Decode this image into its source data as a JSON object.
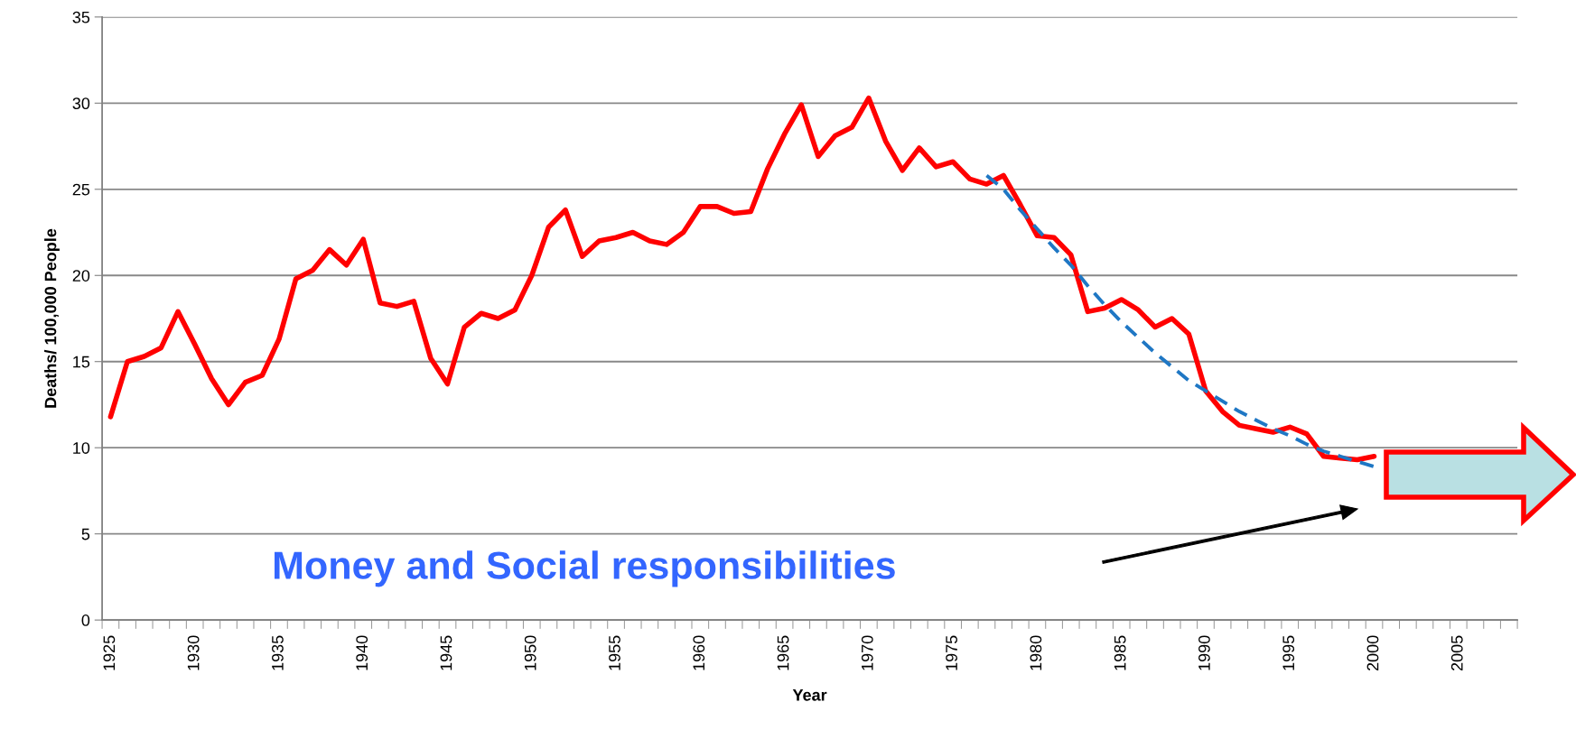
{
  "chart_data": {
    "type": "line",
    "xlabel": "Year",
    "ylabel": "Deaths/ 100,000 People",
    "categories": [
      "1925",
      null,
      null,
      null,
      null,
      "1930",
      null,
      null,
      null,
      null,
      "1935",
      null,
      null,
      null,
      null,
      "1940",
      null,
      null,
      null,
      null,
      "1945",
      null,
      null,
      null,
      null,
      "1950",
      null,
      null,
      null,
      null,
      "1955",
      null,
      null,
      null,
      null,
      "1960",
      null,
      null,
      null,
      null,
      "1965",
      null,
      null,
      null,
      null,
      "1970",
      null,
      null,
      null,
      null,
      "1975",
      null,
      null,
      null,
      null,
      "1980",
      null,
      null,
      null,
      null,
      "1985",
      null,
      null,
      null,
      null,
      "1990",
      null,
      null,
      null,
      null,
      "1995",
      null,
      null,
      null,
      null,
      "2000",
      null,
      null,
      null,
      null,
      "2005",
      null,
      null,
      null
    ],
    "series": [
      {
        "color": "#ff0000",
        "line_style": "solid",
        "values": [
          11.8,
          15.0,
          15.3,
          15.8,
          17.9,
          16.0,
          14.0,
          12.5,
          13.8,
          14.2,
          16.3,
          19.8,
          20.3,
          21.5,
          20.6,
          22.1,
          18.4,
          18.2,
          18.5,
          15.2,
          13.7,
          17.0,
          17.8,
          17.5,
          18.0,
          20.0,
          22.8,
          23.8,
          21.1,
          22.0,
          22.2,
          22.5,
          22.0,
          21.8,
          22.5,
          24.0,
          24.0,
          23.6,
          23.7,
          26.2,
          28.2,
          29.9,
          26.9,
          28.1,
          28.6,
          30.3,
          27.8,
          26.1,
          27.4,
          26.3,
          26.6,
          25.6,
          25.3,
          25.8,
          24.1,
          22.3,
          22.2,
          21.2,
          17.9,
          18.1,
          18.6,
          18.0,
          17.0,
          17.5,
          16.6,
          13.3,
          12.1,
          11.3,
          11.1,
          10.9,
          11.2,
          10.8,
          9.5,
          9.4,
          9.3,
          9.5,
          null,
          null,
          null,
          null,
          null,
          null,
          null,
          null
        ]
      },
      {
        "color": "#1f77c4",
        "line_style": "dashed",
        "values": [
          null,
          null,
          null,
          null,
          null,
          null,
          null,
          null,
          null,
          null,
          null,
          null,
          null,
          null,
          null,
          null,
          null,
          null,
          null,
          null,
          null,
          null,
          null,
          null,
          null,
          null,
          null,
          null,
          null,
          null,
          null,
          null,
          null,
          null,
          null,
          null,
          null,
          null,
          null,
          null,
          null,
          null,
          null,
          null,
          null,
          null,
          null,
          null,
          null,
          null,
          null,
          null,
          25.8,
          25.0,
          23.8,
          22.7,
          21.6,
          20.6,
          19.4,
          18.3,
          17.3,
          16.4,
          15.5,
          14.7,
          13.9,
          13.3,
          12.7,
          12.1,
          11.6,
          11.1,
          10.7,
          10.2,
          9.8,
          9.5,
          9.2,
          8.9,
          null,
          null,
          null,
          null,
          null,
          null,
          null,
          null
        ]
      }
    ],
    "ylim": [
      0,
      35
    ],
    "yticks": [
      0,
      5,
      10,
      15,
      20,
      25,
      30,
      35
    ],
    "grid": "y",
    "legend": false,
    "marker": "none",
    "annotations": [
      "Money and Social responsibilities"
    ]
  }
}
